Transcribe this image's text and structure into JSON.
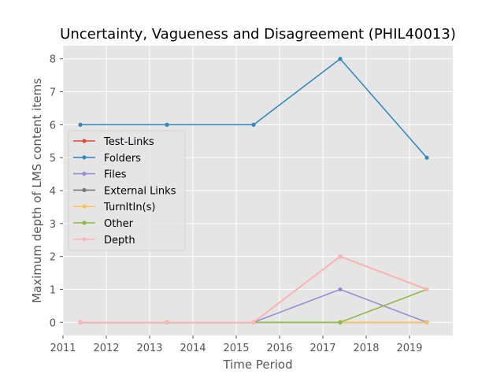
{
  "chart_data": {
    "type": "line",
    "title": "Uncertainty, Vagueness and Disagreement (PHIL40013)",
    "xlabel": "Time Period",
    "ylabel": "Maximum depth of LMS content items",
    "xlim": [
      2011,
      2020
    ],
    "ylim": [
      -0.4,
      8.4
    ],
    "x_ticks": [
      2011,
      2012,
      2013,
      2014,
      2015,
      2016,
      2017,
      2018,
      2019
    ],
    "y_ticks": [
      0,
      1,
      2,
      3,
      4,
      5,
      6,
      7,
      8
    ],
    "x": [
      2011.4,
      2013.4,
      2015.4,
      2017.4,
      2019.4
    ],
    "grid": true,
    "legend_position": "center-left",
    "series": [
      {
        "name": "Test-Links",
        "color": "#E24A33",
        "values": [
          0,
          0,
          0,
          2,
          1
        ]
      },
      {
        "name": "Folders",
        "color": "#348ABD",
        "values": [
          6,
          6,
          6,
          8,
          5
        ]
      },
      {
        "name": "Files",
        "color": "#988ED5",
        "values": [
          0,
          0,
          0,
          1,
          0
        ]
      },
      {
        "name": "External Links",
        "color": "#777777",
        "values": [
          0,
          0,
          0,
          0,
          0
        ]
      },
      {
        "name": "TurnItIn(s)",
        "color": "#FBC15E",
        "values": [
          0,
          0,
          0,
          0,
          0
        ]
      },
      {
        "name": "Other",
        "color": "#8EBA42",
        "values": [
          0,
          0,
          0,
          0,
          1
        ]
      },
      {
        "name": "Depth",
        "color": "#FFB5B8",
        "values": [
          0,
          0,
          0,
          2,
          1
        ]
      }
    ]
  }
}
